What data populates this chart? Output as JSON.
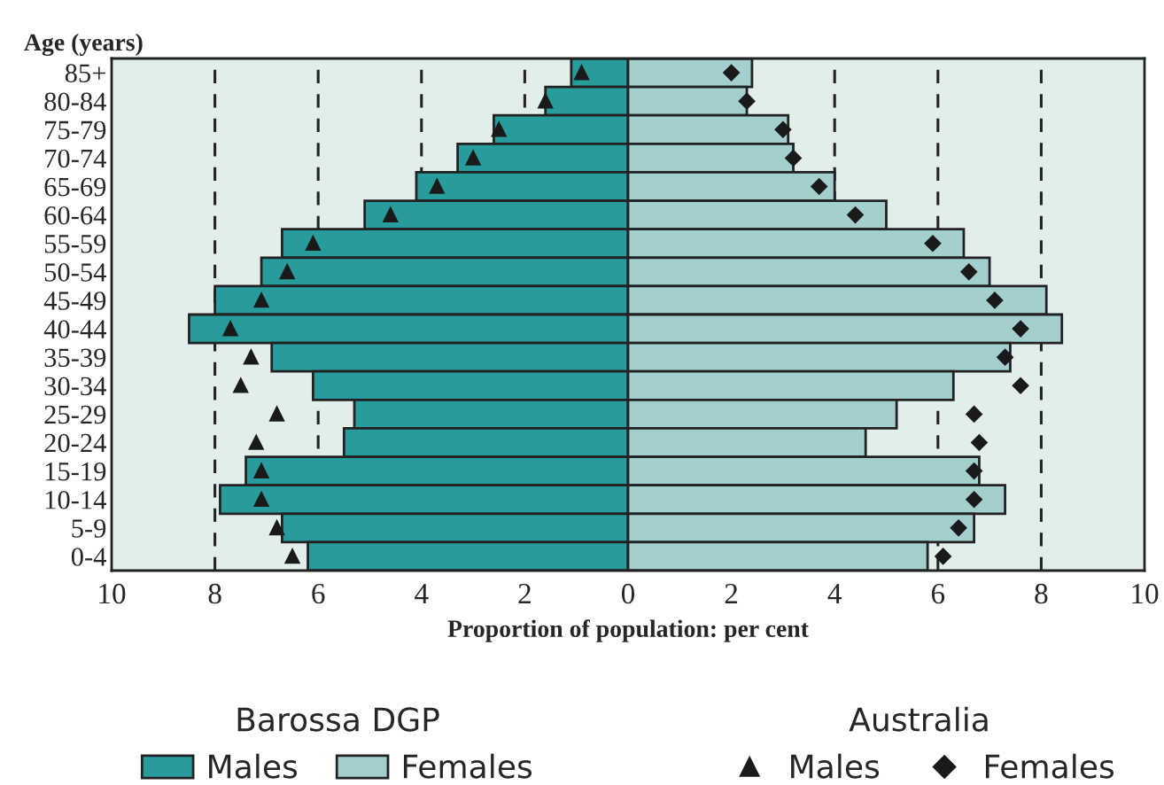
{
  "chart_data": {
    "type": "bar",
    "orientation": "horizontal",
    "stacked": true,
    "xlabel": "Proportion of population: per cent",
    "ylabel": "Age (years)",
    "categories": [
      "85+",
      "80-84",
      "75-79",
      "70-74",
      "65-69",
      "60-64",
      "55-59",
      "50-54",
      "45-49",
      "40-44",
      "35-39",
      "30-34",
      "25-29",
      "20-24",
      "15-19",
      "10-14",
      "5-9",
      "0-4"
    ],
    "series": [
      {
        "name": "Males",
        "color": "#289c9c",
        "values": [
          -1.1,
          -1.6,
          -2.6,
          -3.3,
          -4.1,
          -5.1,
          -6.7,
          -7.1,
          -8.0,
          -8.5,
          -6.9,
          -6.1,
          -5.3,
          -5.5,
          -7.4,
          -7.9,
          -6.7,
          -6.2
        ]
      },
      {
        "name": "Females",
        "color": "#a3cfcf",
        "values": [
          2.4,
          2.3,
          3.1,
          3.2,
          4.0,
          5.0,
          6.5,
          7.0,
          8.1,
          8.4,
          7.4,
          6.3,
          5.2,
          4.6,
          6.8,
          7.3,
          6.7,
          5.8
        ]
      },
      {
        "name": "Males",
        "type": "scatter",
        "marker": "triangle",
        "color": "#1a1a1a",
        "values": [
          -0.9,
          -1.6,
          -2.5,
          -3.0,
          -3.7,
          -4.6,
          -6.1,
          -6.6,
          -7.1,
          -7.7,
          -7.3,
          -7.5,
          -6.8,
          -7.2,
          -7.1,
          -7.1,
          -6.8,
          -6.5
        ]
      },
      {
        "name": "Females",
        "type": "scatter",
        "marker": "diamond",
        "color": "#1a1a1a",
        "values": [
          2.0,
          2.3,
          3.0,
          3.2,
          3.7,
          4.4,
          5.9,
          6.6,
          7.1,
          7.6,
          7.3,
          7.6,
          6.7,
          6.8,
          6.7,
          6.7,
          6.4,
          6.1
        ]
      }
    ],
    "xlim": [
      -10,
      10
    ],
    "xticks": [
      {
        "value": -10,
        "label": "10"
      },
      {
        "value": -8,
        "label": "8"
      },
      {
        "value": -6,
        "label": "6"
      },
      {
        "value": -4,
        "label": "4"
      },
      {
        "value": -2,
        "label": "2"
      },
      0,
      2,
      4,
      6,
      8,
      10
    ],
    "grid": "x",
    "legend": "bottom",
    "annotations": [
      "Barossa DGP",
      "Australia"
    ]
  }
}
